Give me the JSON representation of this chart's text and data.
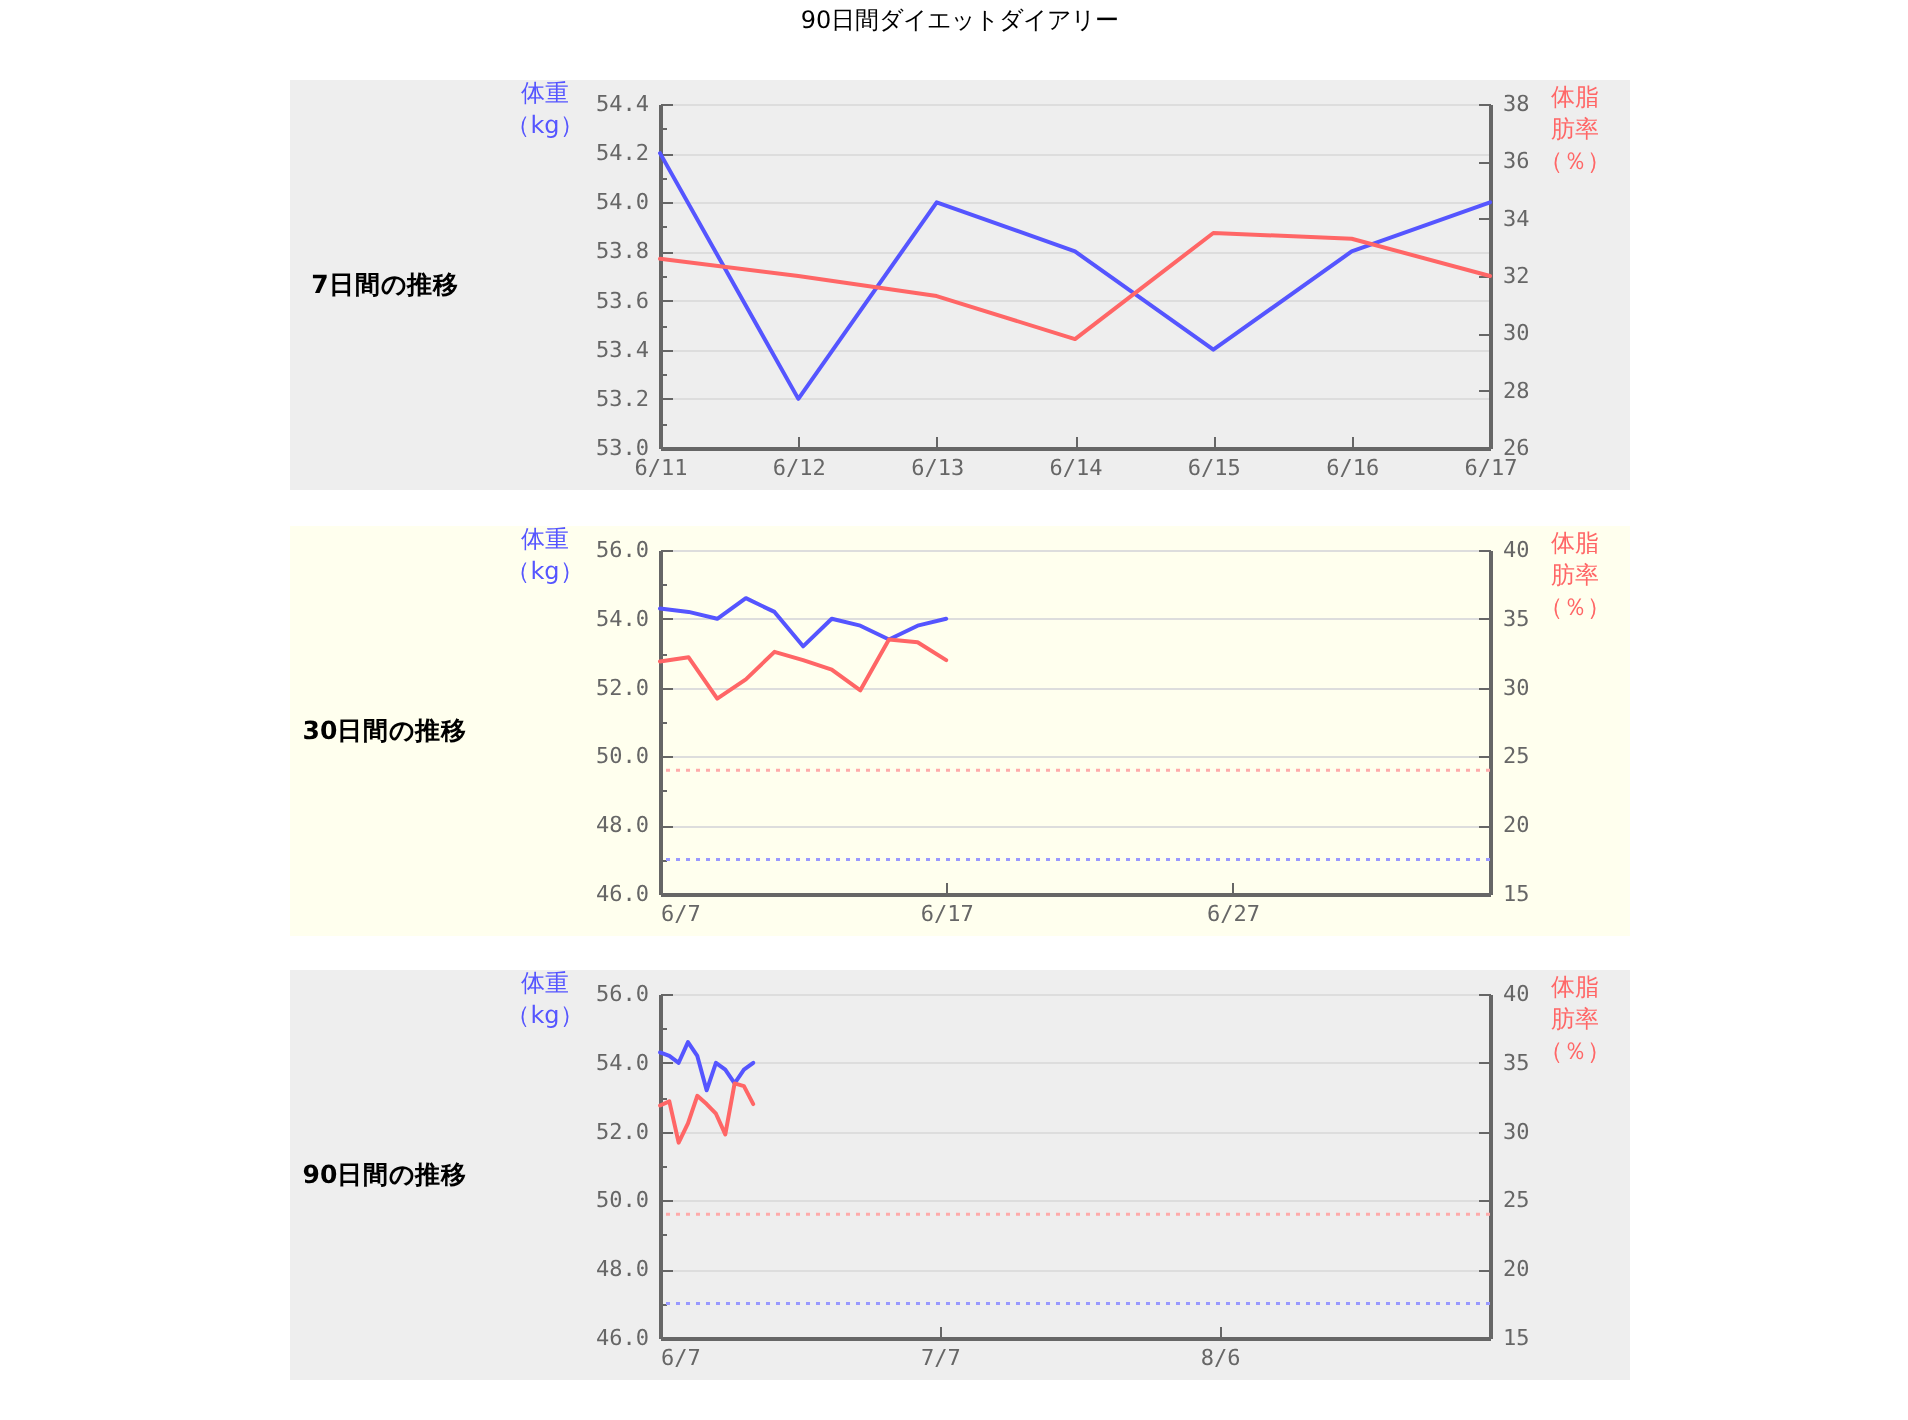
{
  "chart_data": [
    {
      "type": "line",
      "title": "7日間の推移",
      "annotations": [
        "90日間ダイエットダイアリー"
      ],
      "ylabel": "体重（kg）",
      "y2label": "体脂肪率（％）",
      "categories": [
        "6/11",
        "6/12",
        "6/13",
        "6/14",
        "6/15",
        "6/16",
        "6/17"
      ],
      "ylim": [
        53,
        54.4
      ],
      "yticks": [
        {
          "value": 53,
          "label": "53.0"
        },
        {
          "value": 53.1,
          "label": null
        },
        53.2,
        {
          "value": 53.3,
          "label": null
        },
        53.4,
        {
          "value": 53.5,
          "label": null
        },
        53.6,
        {
          "value": 53.7,
          "label": null
        },
        53.8,
        {
          "value": 53.9,
          "label": null
        },
        {
          "value": 54,
          "label": "54.0"
        },
        {
          "value": 54.1,
          "label": null
        },
        54.2,
        {
          "value": 54.3,
          "label": null
        },
        54.4
      ],
      "y2lim": [
        26,
        38
      ],
      "y2ticks": [
        26,
        28,
        30,
        32,
        34,
        36,
        38
      ],
      "grid": "y",
      "series": [
        {
          "color": "#5555ff",
          "values": [
            54.2,
            53.2,
            54.0,
            53.8,
            53.4,
            53.8,
            54.0
          ]
        },
        {
          "color": "#ff6666",
          "axis": "y2",
          "values": [
            32.6,
            32.0,
            31.3,
            29.8,
            33.5,
            33.3,
            32.0
          ]
        }
      ]
    },
    {
      "type": "line",
      "title": "30日間の推移",
      "ylabel": "体重（kg）",
      "y2label": "体脂肪率（％）",
      "x": [
        "--06-07",
        "--06-08",
        "--06-09",
        "--06-10",
        "--06-11",
        "--06-12",
        "--06-13",
        "--06-14",
        "--06-15",
        "--06-16",
        "--06-17"
      ],
      "xlim": [
        "--06-07",
        "--07-06"
      ],
      "xticks": [
        {
          "value": "--06-07",
          "label": "6/7"
        },
        {
          "value": "--06-17",
          "label": "6/17"
        },
        {
          "value": "--06-27",
          "label": "6/27"
        }
      ],
      "ylim": [
        46,
        56
      ],
      "yticks": [
        {
          "value": 46,
          "label": "46.0"
        },
        {
          "value": 47,
          "label": null
        },
        {
          "value": 48,
          "label": "48.0"
        },
        {
          "value": 49,
          "label": null
        },
        {
          "value": 50,
          "label": "50.0"
        },
        {
          "value": 51,
          "label": null
        },
        {
          "value": 52,
          "label": "52.0"
        },
        {
          "value": 53,
          "label": null
        },
        {
          "value": 54,
          "label": "54.0"
        },
        {
          "value": 55,
          "label": null
        },
        {
          "value": 56,
          "label": "56.0"
        }
      ],
      "y2lim": [
        15,
        40
      ],
      "y2ticks": [
        15,
        20,
        25,
        30,
        35,
        40
      ],
      "grid": "y",
      "series": [
        {
          "color": "#5555ff",
          "values": [
            54.3,
            54.2,
            54.0,
            54.6,
            54.2,
            53.2,
            54.0,
            53.8,
            53.4,
            53.8,
            54.0
          ]
        },
        {
          "color": "#ff6666",
          "axis": "y2",
          "values": [
            31.9,
            32.2,
            29.2,
            30.6,
            32.6,
            32.0,
            31.3,
            29.8,
            33.5,
            33.3,
            32.0
          ]
        }
      ],
      "ref_lines": [
        {
          "axis": "y",
          "value": 47.0,
          "color": "#9999ff",
          "line_style": "dotted"
        },
        {
          "axis": "y2",
          "value": 24,
          "color": "#ffaaaa",
          "line_style": "dotted"
        }
      ]
    },
    {
      "type": "line",
      "title": "90日間の推移",
      "ylabel": "体重（kg）",
      "y2label": "体脂肪率（％）",
      "x": [
        "--06-07",
        "--06-08",
        "--06-09",
        "--06-10",
        "--06-11",
        "--06-12",
        "--06-13",
        "--06-14",
        "--06-15",
        "--06-16",
        "--06-17"
      ],
      "xlim": [
        "--06-07",
        "--09-04"
      ],
      "xticks": [
        {
          "value": "--06-07",
          "label": "6/7"
        },
        {
          "value": "--07-07",
          "label": "7/7"
        },
        {
          "value": "--08-06",
          "label": "8/6"
        }
      ],
      "ylim": [
        46,
        56
      ],
      "yticks": [
        {
          "value": 46,
          "label": "46.0"
        },
        {
          "value": 47,
          "label": null
        },
        {
          "value": 48,
          "label": "48.0"
        },
        {
          "value": 49,
          "label": null
        },
        {
          "value": 50,
          "label": "50.0"
        },
        {
          "value": 51,
          "label": null
        },
        {
          "value": 52,
          "label": "52.0"
        },
        {
          "value": 53,
          "label": null
        },
        {
          "value": 54,
          "label": "54.0"
        },
        {
          "value": 55,
          "label": null
        },
        {
          "value": 56,
          "label": "56.0"
        }
      ],
      "y2lim": [
        15,
        40
      ],
      "y2ticks": [
        15,
        20,
        25,
        30,
        35,
        40
      ],
      "grid": "y",
      "series": [
        {
          "color": "#5555ff",
          "values": [
            54.3,
            54.2,
            54.0,
            54.6,
            54.2,
            53.2,
            54.0,
            53.8,
            53.4,
            53.8,
            54.0
          ]
        },
        {
          "color": "#ff6666",
          "axis": "y2",
          "values": [
            31.9,
            32.2,
            29.2,
            30.6,
            32.6,
            32.0,
            31.3,
            29.8,
            33.5,
            33.3,
            32.0
          ]
        }
      ],
      "ref_lines": [
        {
          "axis": "y",
          "value": 47.0,
          "color": "#9999ff",
          "line_style": "dotted"
        },
        {
          "axis": "y2",
          "value": 24,
          "color": "#ffaaaa",
          "line_style": "dotted"
        }
      ]
    }
  ]
}
